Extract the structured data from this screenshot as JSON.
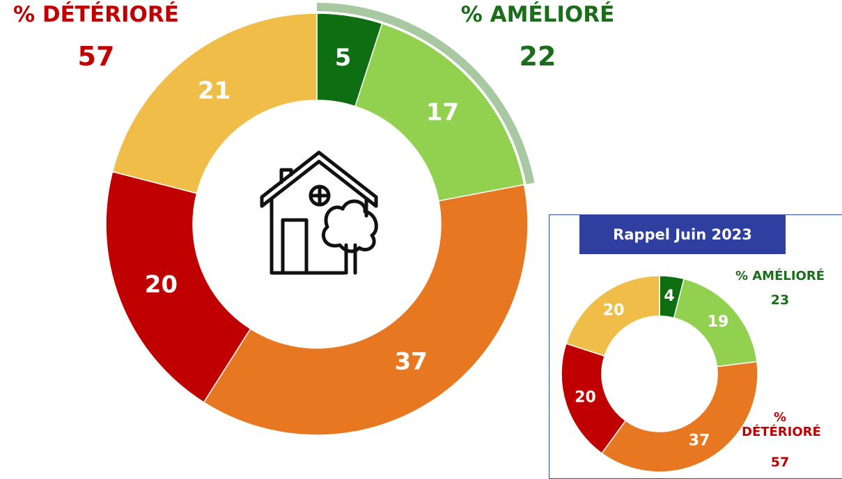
{
  "chart_data": [
    {
      "type": "donut",
      "values": [
        5,
        17,
        37,
        20,
        21
      ],
      "colors": [
        "#0e6e12",
        "#92d050",
        "#e87722",
        "#c00000",
        "#f0be48"
      ],
      "annotations": [
        {
          "label": "% DÉTÉRIORÉ",
          "value": 57,
          "color": "#c00000"
        },
        {
          "label": "% AMÉLIORÉ",
          "value": 22,
          "color": "#1a6e1a"
        }
      ]
    },
    {
      "type": "donut",
      "title": "Rappel Juin 2023",
      "values": [
        4,
        19,
        37,
        20,
        20
      ],
      "colors": [
        "#0e6e12",
        "#92d050",
        "#e87722",
        "#c00000",
        "#f0be48"
      ],
      "annotations": [
        {
          "label": "% AMÉLIORÉ",
          "value": 23,
          "color": "#1a6e1a"
        },
        {
          "label": "% DÉTÉRIORÉ",
          "value": 57,
          "color": "#c00000"
        }
      ]
    }
  ]
}
